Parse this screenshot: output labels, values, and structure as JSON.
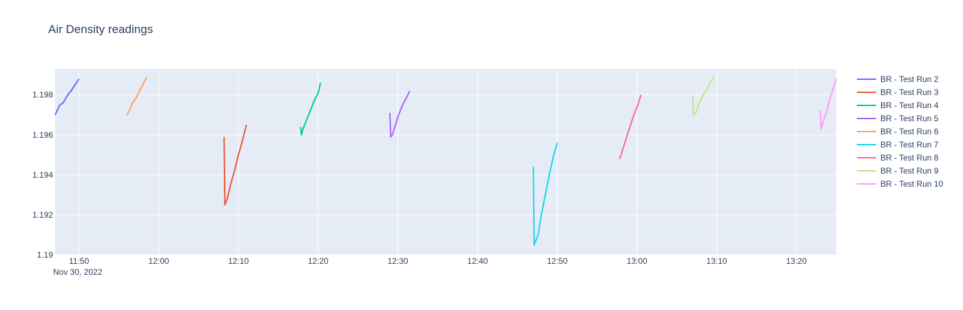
{
  "chart_data": {
    "type": "line",
    "title": "Air Density readings",
    "x_axis": {
      "range": [
        "2022-11-30 11:47",
        "2022-11-30 13:25"
      ],
      "ticks": [
        "11:50",
        "12:00",
        "12:10",
        "12:20",
        "12:30",
        "12:40",
        "12:50",
        "13:00",
        "13:10",
        "13:20"
      ],
      "date_label": "Nov 30, 2022"
    },
    "y_axis": {
      "range": [
        1.19,
        1.1993
      ],
      "ticks": [
        "1.19",
        "1.192",
        "1.194",
        "1.196",
        "1.198"
      ]
    },
    "grid": true,
    "legend_position": "right",
    "series": [
      {
        "name": "BR - Test Run 2",
        "color": "#636efa",
        "x": [
          "11:47:00",
          "11:47:36",
          "11:48:00",
          "11:48:36",
          "11:49:00",
          "11:49:30",
          "11:50:00"
        ],
        "y": [
          1.197,
          1.1975,
          1.1976,
          1.198,
          1.1982,
          1.1985,
          1.1988
        ]
      },
      {
        "name": "BR - Test Run 3",
        "color": "#ef553b",
        "x": [
          "12:08:12",
          "12:08:18",
          "12:08:36",
          "12:09:00",
          "12:09:30",
          "12:10:00",
          "12:10:30",
          "12:11:00"
        ],
        "y": [
          1.1959,
          1.1925,
          1.1928,
          1.1935,
          1.1942,
          1.195,
          1.1957,
          1.1965
        ]
      },
      {
        "name": "BR - Test Run 4",
        "color": "#00cc96",
        "x": [
          "12:17:48",
          "12:17:54",
          "12:18:06",
          "12:18:30",
          "12:19:00",
          "12:19:30",
          "12:20:00",
          "12:20:18"
        ],
        "y": [
          1.1964,
          1.196,
          1.1963,
          1.1967,
          1.1972,
          1.1977,
          1.1981,
          1.1986
        ]
      },
      {
        "name": "BR - Test Run 5",
        "color": "#ab63fa",
        "x": [
          "12:29:00",
          "12:29:06",
          "12:29:18",
          "12:29:42",
          "12:30:06",
          "12:30:36",
          "12:31:00",
          "12:31:30"
        ],
        "y": [
          1.1971,
          1.1959,
          1.196,
          1.1965,
          1.197,
          1.1975,
          1.1978,
          1.1982
        ]
      },
      {
        "name": "BR - Test Run 6",
        "color": "#ffa15a",
        "x": [
          "11:56:00",
          "11:56:18",
          "11:56:42",
          "11:57:06",
          "11:57:36",
          "11:58:00",
          "11:58:30"
        ],
        "y": [
          1.197,
          1.1972,
          1.1976,
          1.1978,
          1.1982,
          1.1985,
          1.1989
        ]
      },
      {
        "name": "BR - Test Run 7",
        "color": "#19d3f3",
        "x": [
          "12:47:00",
          "12:47:06",
          "12:47:36",
          "12:48:00",
          "12:48:30",
          "12:49:00",
          "12:49:30",
          "12:50:00"
        ],
        "y": [
          1.1944,
          1.1905,
          1.191,
          1.192,
          1.193,
          1.194,
          1.1949,
          1.1956
        ]
      },
      {
        "name": "BR - Test Run 8",
        "color": "#ff6692",
        "x": [
          "12:57:48",
          "12:58:00",
          "12:58:24",
          "12:58:48",
          "12:59:12",
          "12:59:36",
          "13:00:06",
          "13:00:30"
        ],
        "y": [
          1.1948,
          1.195,
          1.1955,
          1.196,
          1.1965,
          1.197,
          1.1975,
          1.198
        ]
      },
      {
        "name": "BR - Test Run 9",
        "color": "#b6e880",
        "x": [
          "13:07:00",
          "13:07:06",
          "13:07:24",
          "13:07:48",
          "13:08:18",
          "13:08:48",
          "13:09:18",
          "13:09:42"
        ],
        "y": [
          1.1979,
          1.197,
          1.1971,
          1.1976,
          1.198,
          1.1983,
          1.1987,
          1.1989
        ]
      },
      {
        "name": "BR - Test Run 10",
        "color": "#ff97ff",
        "x": [
          "13:23:00",
          "13:23:06",
          "13:23:24",
          "13:23:48",
          "13:24:12",
          "13:24:36",
          "13:25:00"
        ],
        "y": [
          1.1972,
          1.1963,
          1.1967,
          1.1972,
          1.1978,
          1.1983,
          1.1988
        ]
      }
    ]
  }
}
